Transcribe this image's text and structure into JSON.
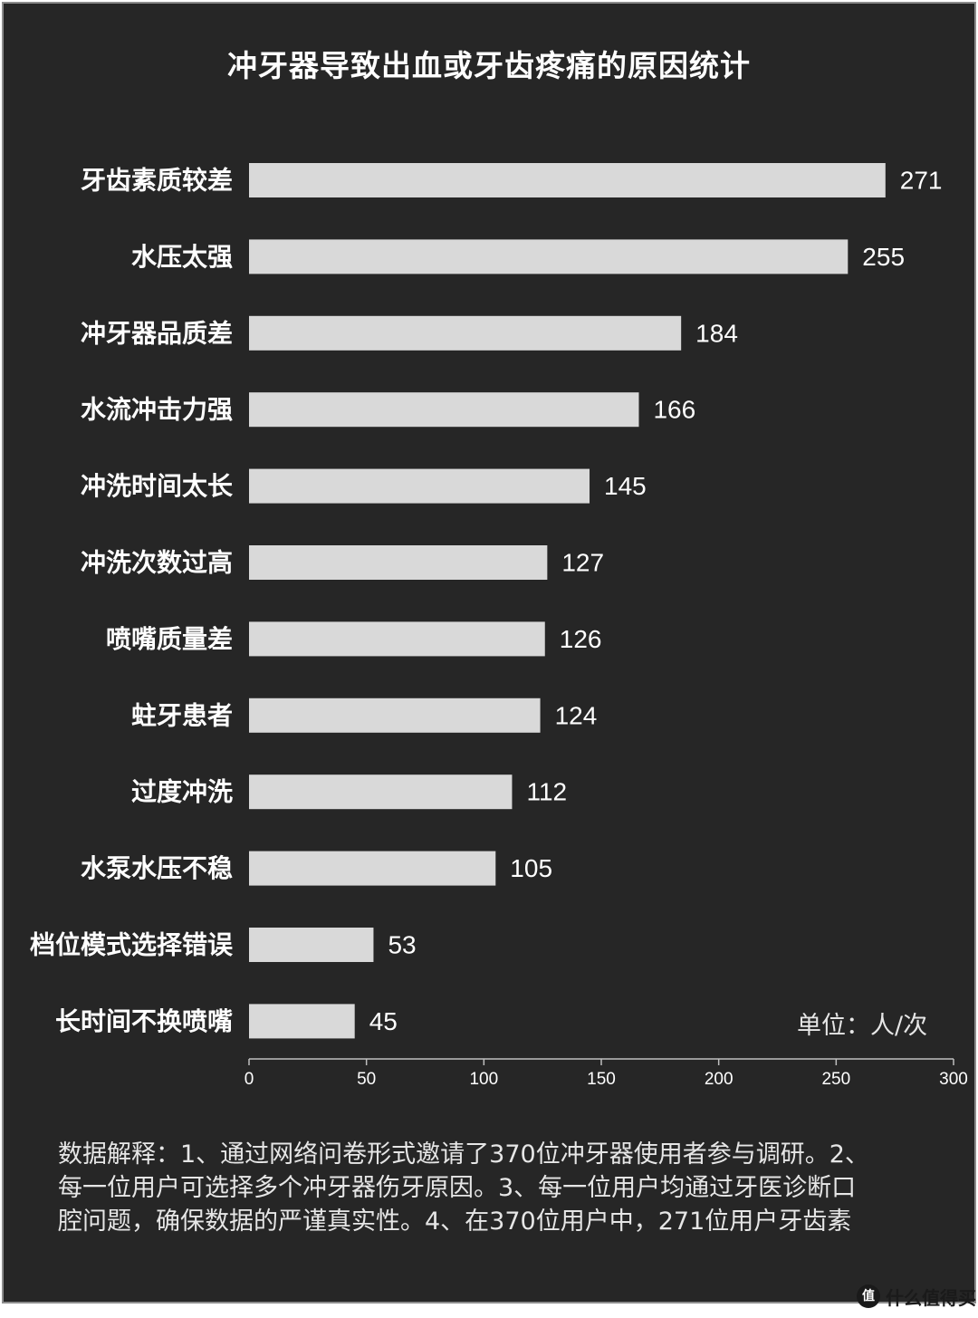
{
  "chart_data": {
    "type": "bar",
    "orientation": "horizontal",
    "title": "冲牙器导致出血或牙齿疼痛的原因统计",
    "categories": [
      "牙齿素质较差",
      "水压太强",
      "冲牙器品质差",
      "水流冲击力强",
      "冲洗时间太长",
      "冲洗次数过高",
      "喷嘴质量差",
      "蛀牙患者",
      "过度冲洗",
      "水泵水压不稳",
      "档位模式选择错误",
      "长时间不换喷嘴"
    ],
    "values": [
      271,
      255,
      184,
      166,
      145,
      127,
      126,
      124,
      112,
      105,
      53,
      45
    ],
    "xlim": [
      0,
      300
    ],
    "x_ticks": [
      0,
      50,
      100,
      150,
      200,
      250,
      300
    ],
    "unit_label": "单位：人/次",
    "grid": false,
    "data_labels": true
  },
  "notes": {
    "lines": [
      "数据解释：1、通过网络问卷形式邀请了370位冲牙器使用者参与调研。2、",
      "每一位用户可选择多个冲牙器伤牙原因。3、每一位用户均通过牙医诊断口",
      "腔问题，确保数据的严谨真实性。4、在370位用户中，271位用户牙齿素"
    ]
  },
  "watermark": {
    "icon": "值",
    "text": "什么值得买"
  },
  "colors": {
    "background": "#262626",
    "bar": "#d9d9d9",
    "text": "#ffffff",
    "axis": "#bfbfbf"
  }
}
